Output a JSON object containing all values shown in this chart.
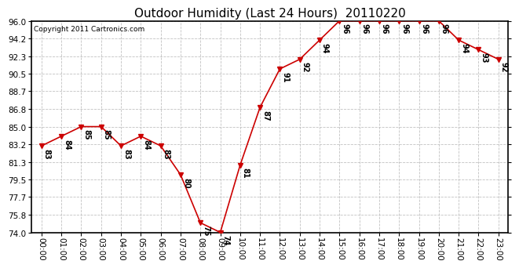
{
  "title": "Outdoor Humidity (Last 24 Hours)  20110220",
  "copyright": "Copyright 2011 Cartronics.com",
  "x_labels": [
    "00:00",
    "01:00",
    "02:00",
    "03:00",
    "04:00",
    "05:00",
    "06:00",
    "07:00",
    "08:00",
    "09:00",
    "10:00",
    "11:00",
    "12:00",
    "13:00",
    "14:00",
    "15:00",
    "16:00",
    "17:00",
    "18:00",
    "19:00",
    "20:00",
    "21:00",
    "22:00",
    "23:00"
  ],
  "y_values": [
    83,
    84,
    85,
    85,
    83,
    84,
    83,
    80,
    75,
    74,
    81,
    87,
    91,
    92,
    94,
    96,
    96,
    96,
    96,
    96,
    96,
    94,
    93,
    92
  ],
  "ylim": [
    74.0,
    96.0
  ],
  "yticks": [
    74.0,
    75.8,
    77.7,
    79.5,
    81.3,
    83.2,
    85.0,
    86.8,
    88.7,
    90.5,
    92.3,
    94.2,
    96.0
  ],
  "line_color": "#cc0000",
  "marker": "v",
  "marker_size": 4,
  "bg_color": "#ffffff",
  "grid_color": "#bbbbbb",
  "title_fontsize": 11,
  "tick_fontsize": 7.5,
  "annot_fontsize": 7,
  "copyright_fontsize": 6.5
}
